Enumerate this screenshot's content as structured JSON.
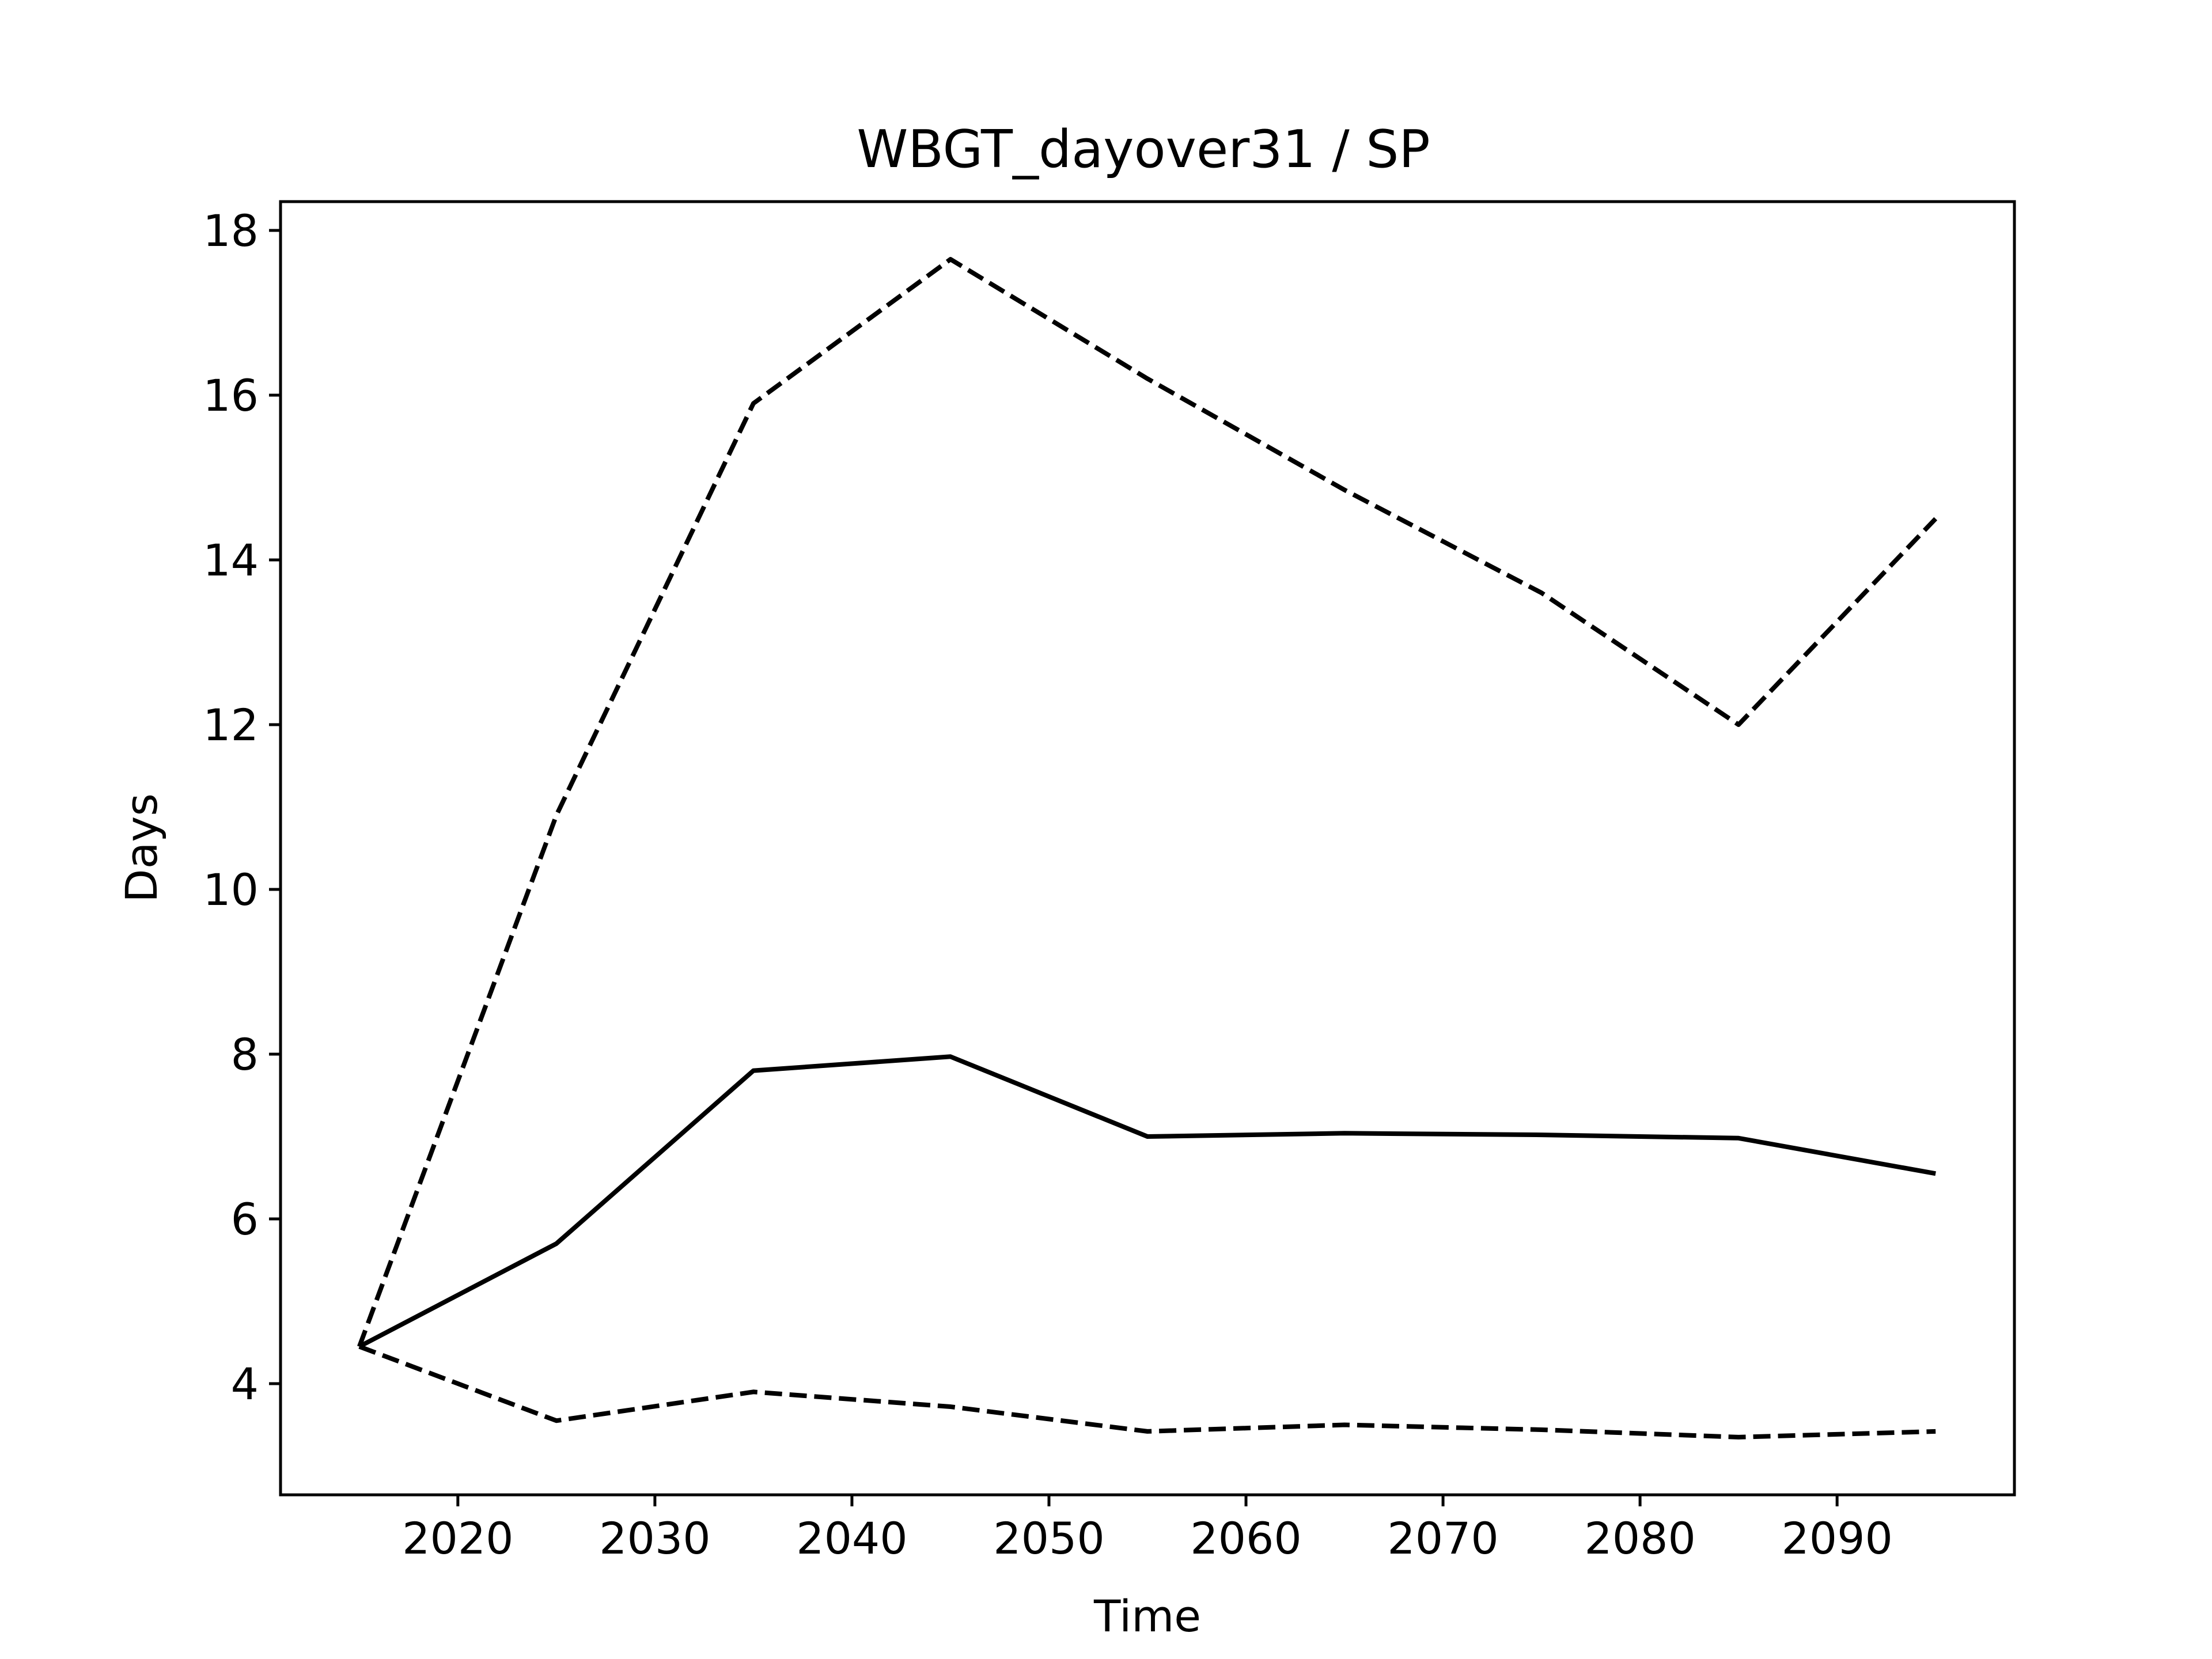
{
  "chart_data": {
    "type": "line",
    "title": "WBGT_dayover31 / SP",
    "xlabel": "Time",
    "ylabel": "Days",
    "xlim": [
      2011,
      2099
    ],
    "ylim": [
      2.65,
      18.35
    ],
    "xticks": [
      2020,
      2030,
      2040,
      2050,
      2060,
      2070,
      2080,
      2090
    ],
    "yticks": [
      4,
      6,
      8,
      10,
      12,
      14,
      16,
      18
    ],
    "grid": false,
    "legend": "none",
    "x": [
      2015,
      2025,
      2035,
      2045,
      2055,
      2065,
      2075,
      2085,
      2095
    ],
    "series": [
      {
        "style": "solid",
        "color": "#000000",
        "values": [
          4.45,
          5.7,
          7.8,
          7.97,
          7.0,
          7.04,
          7.02,
          6.98,
          6.55
        ]
      },
      {
        "style": "dashed",
        "color": "#000000",
        "values": [
          4.45,
          10.9,
          15.9,
          17.65,
          16.2,
          14.85,
          13.6,
          12.0,
          14.5
        ]
      },
      {
        "style": "dashed",
        "color": "#000000",
        "values": [
          4.45,
          3.55,
          3.9,
          3.72,
          3.42,
          3.5,
          3.44,
          3.35,
          3.42
        ]
      }
    ]
  }
}
